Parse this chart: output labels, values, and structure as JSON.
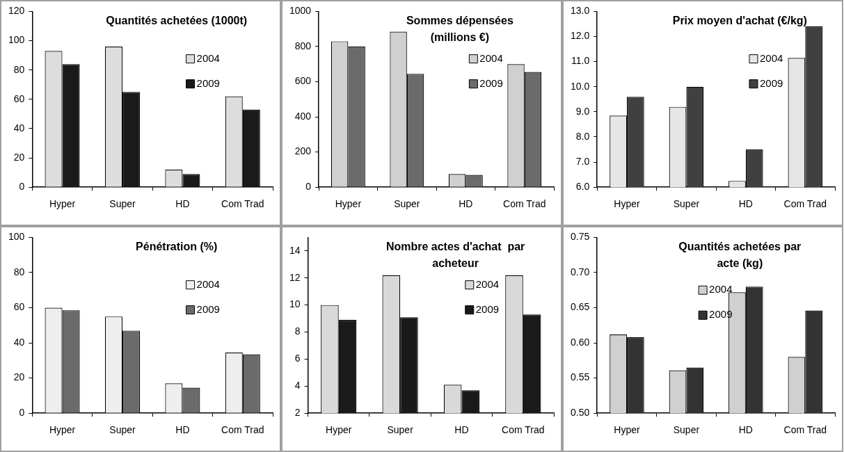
{
  "chart_data": [
    {
      "type": "bar",
      "title": "Quantités achetées (1000t)",
      "categories": [
        "Hyper",
        "Super",
        "HD",
        "Com Trad"
      ],
      "series": [
        {
          "name": "2004",
          "color": "#dddddd",
          "values": [
            93,
            96,
            12,
            62
          ]
        },
        {
          "name": "2009",
          "color": "#1a1a1a",
          "values": [
            84,
            65,
            9,
            53
          ]
        }
      ],
      "ylim": [
        0,
        120
      ],
      "yticks": [
        0,
        20,
        40,
        60,
        80,
        100,
        120
      ],
      "legend": "right",
      "grid": false
    },
    {
      "type": "bar",
      "title": "Sommes dépensées (millions €)",
      "categories": [
        "Hyper",
        "Super",
        "HD",
        "Com Trad"
      ],
      "series": [
        {
          "name": "2004",
          "color": "#d0d0d0",
          "values": [
            830,
            885,
            75,
            700
          ]
        },
        {
          "name": "2009",
          "color": "#6b6b6b",
          "values": [
            800,
            645,
            70,
            655
          ]
        }
      ],
      "ylim": [
        0,
        1000
      ],
      "yticks": [
        0,
        200,
        400,
        600,
        800,
        1000
      ],
      "legend": "right",
      "grid": false
    },
    {
      "type": "bar",
      "title": "Prix moyen d'achat (€/kg)",
      "categories": [
        "Hyper",
        "Super",
        "HD",
        "Com Trad"
      ],
      "series": [
        {
          "name": "2004",
          "color": "#e6e6e6",
          "values": [
            8.85,
            9.2,
            6.25,
            11.15
          ]
        },
        {
          "name": "2009",
          "color": "#404040",
          "values": [
            9.6,
            10.0,
            7.5,
            12.4
          ]
        }
      ],
      "ylim": [
        6,
        13
      ],
      "yticks": [
        {
          "value": 6,
          "label": "6.0"
        },
        {
          "value": 7,
          "label": "7.0"
        },
        {
          "value": 8,
          "label": "8.0"
        },
        {
          "value": 9,
          "label": "9.0"
        },
        {
          "value": 10,
          "label": "10.0"
        },
        {
          "value": 11,
          "label": "11.0"
        },
        {
          "value": 12,
          "label": "12.0"
        },
        {
          "value": 13,
          "label": "13.0"
        }
      ],
      "legend": "right",
      "grid": false
    },
    {
      "type": "bar",
      "title": "Pénétration (%)",
      "categories": [
        "Hyper",
        "Super",
        "HD",
        "Com Trad"
      ],
      "series": [
        {
          "name": "2004",
          "color": "#eeeeee",
          "values": [
            60,
            55,
            17,
            34.5
          ]
        },
        {
          "name": "2009",
          "color": "#6b6b6b",
          "values": [
            58.5,
            47,
            14.5,
            33.5
          ]
        }
      ],
      "ylim": [
        0,
        100
      ],
      "yticks": [
        0,
        20,
        40,
        60,
        80,
        100
      ],
      "legend": "right",
      "grid": false
    },
    {
      "type": "bar",
      "title": "Nombre actes d'achat  par acheteur",
      "categories": [
        "Hyper",
        "Super",
        "HD",
        "Com Trad"
      ],
      "series": [
        {
          "name": "2004",
          "color": "#d9d9d9",
          "values": [
            10,
            12.2,
            4.1,
            12.2
          ]
        },
        {
          "name": "2009",
          "color": "#1a1a1a",
          "values": [
            8.9,
            9.1,
            3.7,
            9.3
          ]
        }
      ],
      "ylim": [
        2,
        15
      ],
      "yticks": [
        2,
        4,
        6,
        8,
        10,
        12,
        14
      ],
      "legend": "right",
      "grid": false
    },
    {
      "type": "bar",
      "title": "Quantités achetées par acte (kg)",
      "categories": [
        "Hyper",
        "Super",
        "HD",
        "Com Trad"
      ],
      "series": [
        {
          "name": "2004",
          "color": "#d0d0d0",
          "values": [
            0.612,
            0.561,
            0.672,
            0.58
          ]
        },
        {
          "name": "2009",
          "color": "#333333",
          "values": [
            0.608,
            0.565,
            0.68,
            0.646
          ]
        }
      ],
      "ylim": [
        0.5,
        0.75
      ],
      "yticks": [
        {
          "value": 0.5,
          "label": "0.50"
        },
        {
          "value": 0.55,
          "label": "0.55"
        },
        {
          "value": 0.6,
          "label": "0.60"
        },
        {
          "value": 0.65,
          "label": "0.65"
        },
        {
          "value": 0.7,
          "label": "0.70"
        },
        {
          "value": 0.75,
          "label": "0.75"
        }
      ],
      "legend": "top",
      "grid": false
    }
  ]
}
